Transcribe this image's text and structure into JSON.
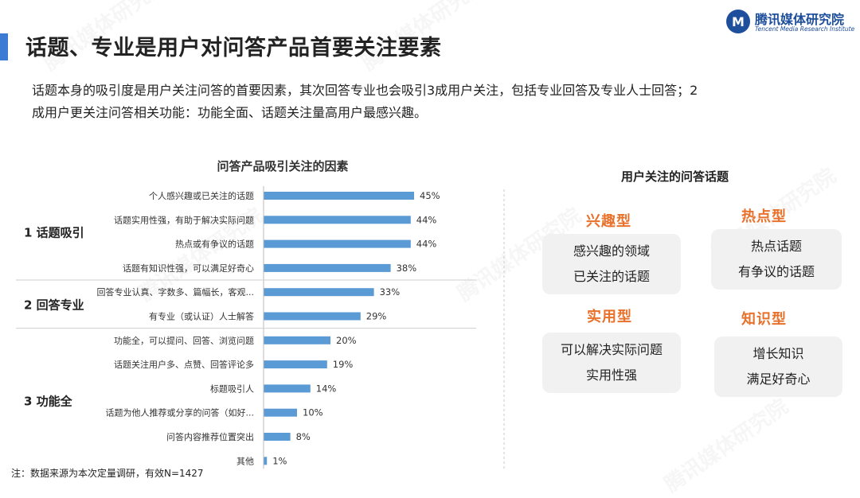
{
  "header": {
    "title": "话题、专业是用户对问答产品首要关注要素",
    "accent_color": "#3b7bd4"
  },
  "logo": {
    "mark_icon": "tencent-media-logo-icon",
    "mark_text": "M",
    "name": "腾讯媒体研究院",
    "subtitle": "Tencent Media Research Institute",
    "color": "#1e4f9c"
  },
  "intro": {
    "line1": "话题本身的吸引度是用户关注问答的首要因素，其次回答专业也会吸引3成用户关注，包括专业回答及专业人士回答；2",
    "line2": "成用户更关注问答相关功能：功能全面、话题关注量高用户最感兴趣。"
  },
  "chart_data": {
    "type": "bar",
    "orientation": "horizontal",
    "title": "问答产品吸引关注的因素",
    "categories": [
      "个人感兴趣或已关注的话题",
      "话题实用性强，有助于解决实际问题",
      "热点或有争议的话题",
      "话题有知识性强，可以满足好奇心",
      "回答专业认真、字数多、篇幅长，客观...",
      "有专业（或认证）人士解答",
      "功能全，可以提问、回答、浏览问题",
      "话题关注用户多、点赞、回答评论多",
      "标题吸引人",
      "话题为他人推荐或分享的问答（如好...",
      "问答内容推荐位置突出",
      "其他"
    ],
    "values": [
      45,
      44,
      44,
      38,
      33,
      29,
      20,
      19,
      14,
      10,
      8,
      1
    ],
    "value_suffix": "%",
    "xlim": [
      0,
      100
    ],
    "bar_color": "#5b9bd5",
    "groups": [
      {
        "label": "1 话题吸引",
        "start": 0,
        "end": 3
      },
      {
        "label": "2 回答专业",
        "start": 4,
        "end": 5
      },
      {
        "label": "3 功能全",
        "start": 6,
        "end": 11
      }
    ]
  },
  "note": "注：数据来源为本次定量调研，有效N=1427",
  "topics": {
    "title": "用户关注的问答话题",
    "label_color": "#e8712b",
    "items": [
      {
        "label": "兴趣型",
        "lines": [
          "感兴趣的领域",
          "已关注的话题"
        ]
      },
      {
        "label": "热点型",
        "lines": [
          "热点话题",
          "有争议的话题"
        ]
      },
      {
        "label": "实用型",
        "lines": [
          "可以解决实际问题",
          "实用性强"
        ]
      },
      {
        "label": "知识型",
        "lines": [
          "增长知识",
          "满足好奇心"
        ]
      }
    ]
  }
}
